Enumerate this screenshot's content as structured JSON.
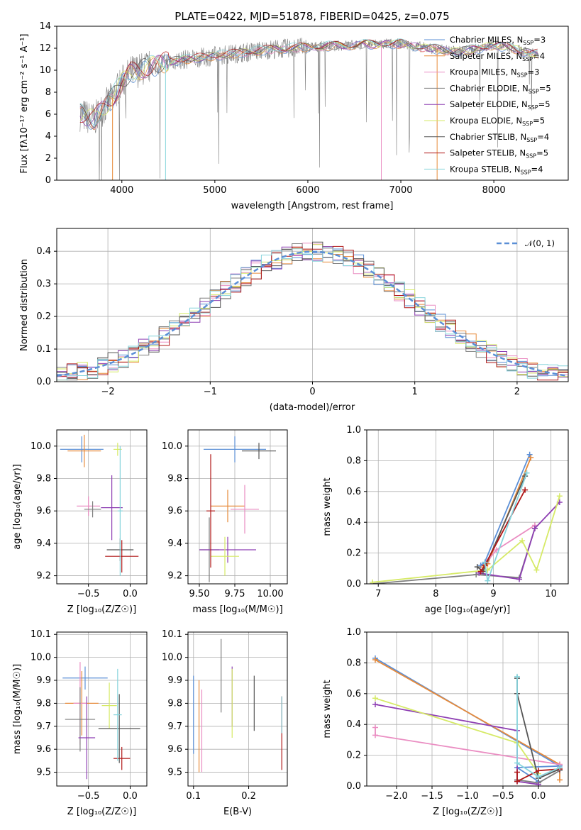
{
  "colors": [
    "#5b8fd6",
    "#e78a3a",
    "#ea8dc2",
    "#7f7f7f",
    "#8e3fb3",
    "#d6ea66",
    "#555555",
    "#b01818",
    "#86d4dc"
  ],
  "spectrum": {
    "title": "PLATE=0422, MJD=51878, FIBERID=0425, z=0.075",
    "xlabel": "wavelength [Angstrom, rest frame]",
    "ylabel": "Flux [fλ10⁻¹⁷ erg cm⁻² s⁻¹ A⁻¹]",
    "xticks": [
      "4000",
      "5000",
      "6000",
      "7000",
      "8000"
    ],
    "yticks": [
      "0",
      "2",
      "4",
      "6",
      "8",
      "10",
      "12",
      "14"
    ],
    "legend": [
      {
        "model": "Chabrier MILES",
        "n": "3"
      },
      {
        "model": "Salpeter MILES",
        "n": "4"
      },
      {
        "model": "Kroupa MILES",
        "n": "3"
      },
      {
        "model": "Chabrier ELODIE",
        "n": "5"
      },
      {
        "model": "Salpeter ELODIE",
        "n": "5"
      },
      {
        "model": "Kroupa ELODIE",
        "n": "5"
      },
      {
        "model": "Chabrier STELIB",
        "n": "4"
      },
      {
        "model": "Salpeter STELIB",
        "n": "5"
      },
      {
        "model": "Kroupa STELIB",
        "n": "4"
      }
    ]
  },
  "residuals": {
    "xlabel": "(data-model)/error",
    "ylabel": "Normed distribution",
    "xticks": [
      "−2",
      "−1",
      "0",
      "1",
      "2"
    ],
    "yticks": [
      "0.0",
      "0.1",
      "0.2",
      "0.3",
      "0.4"
    ],
    "legend_label": "𝒩(0, 1)"
  },
  "panels": {
    "z_age": {
      "xlabel": "Z [log₁₀(Z/Z☉)]",
      "ylabel": "age  [log₁₀(age/yr)]",
      "xticks": [
        "−0.5",
        "0.0"
      ],
      "yticks": [
        "9.2",
        "9.4",
        "9.6",
        "9.8",
        "10.0"
      ]
    },
    "mass_age": {
      "xlabel": "mass [log₁₀(M/M☉)]",
      "xticks": [
        "9.50",
        "9.75",
        "10.00"
      ],
      "yticks": [
        "9.2",
        "9.4",
        "9.6",
        "9.8",
        "10.0"
      ]
    },
    "age_weight": {
      "xlabel": "age  [log₁₀(age/yr)]",
      "ylabel": "mass weight",
      "xticks": [
        "7",
        "8",
        "9",
        "10"
      ],
      "yticks": [
        "0.0",
        "0.2",
        "0.4",
        "0.6",
        "0.8",
        "1.0"
      ]
    },
    "z_mass": {
      "xlabel": "Z [log₁₀(Z/Z☉)]",
      "ylabel": "mass [log₁₀(M/M☉)]",
      "xticks": [
        "−0.5",
        "0.0"
      ],
      "yticks": [
        "9.5",
        "9.6",
        "9.7",
        "9.8",
        "9.9",
        "10.0",
        "10.1"
      ]
    },
    "ebv_mass": {
      "xlabel": "E(B-V)",
      "xticks": [
        "0.1",
        "0.2"
      ],
      "yticks": [
        "9.5",
        "9.6",
        "9.7",
        "9.8",
        "9.9",
        "10.0",
        "10.1"
      ]
    },
    "z_weight": {
      "xlabel": "Z [log₁₀(Z/Z☉)]",
      "ylabel": "mass weight",
      "xticks": [
        "−2.0",
        "−1.5",
        "−1.0",
        "−0.5",
        "0.0"
      ],
      "yticks": [
        "0.0",
        "0.2",
        "0.4",
        "0.6",
        "0.8",
        "1.0"
      ]
    }
  },
  "chart_data": [
    {
      "type": "line",
      "title": "PLATE=0422, MJD=51878, FIBERID=0425, z=0.075",
      "xlabel": "wavelength [Angstrom, rest frame]",
      "ylabel": "Flux [fλ10⁻¹⁷ erg cm⁻² s⁻¹ A⁻¹]",
      "xlim": [
        3300,
        8800
      ],
      "ylim": [
        0,
        14
      ],
      "continuum": {
        "x": [
          3550,
          3700,
          3900,
          4000,
          4100,
          4300,
          4500,
          4700,
          5000,
          5300,
          5600,
          6000,
          6500,
          6800,
          7000,
          7300,
          7600,
          7800,
          8000,
          8200,
          8400
        ],
        "y": [
          6.0,
          5.5,
          7.5,
          8.9,
          9.8,
          10.3,
          10.8,
          11.0,
          11.3,
          11.6,
          11.9,
          12.1,
          12.3,
          12.4,
          12.4,
          12.0,
          11.7,
          11.9,
          12.3,
          12.0,
          11.5
        ]
      },
      "grid": false,
      "legend": "upper right"
    },
    {
      "type": "line",
      "xlabel": "(data-model)/error",
      "ylabel": "Normed distribution",
      "xlim": [
        -2.5,
        2.5
      ],
      "ylim": [
        0,
        0.47
      ],
      "grid": true,
      "reference": {
        "x": [
          -2.5,
          -2.0,
          -1.5,
          -1.0,
          -0.5,
          0.0,
          0.5,
          1.0,
          1.5,
          2.0,
          2.5
        ],
        "y": [
          0.018,
          0.054,
          0.13,
          0.242,
          0.352,
          0.399,
          0.352,
          0.242,
          0.13,
          0.054,
          0.018
        ]
      },
      "bin_width": 0.1
    },
    {
      "type": "scatter",
      "xlabel": "Z [log₁₀(Z/Z☉)]",
      "ylabel": "age  [log₁₀(age/yr)]",
      "xlim": [
        -0.88,
        0.2
      ],
      "ylim": [
        9.15,
        10.1
      ],
      "grid": true,
      "points": [
        {
          "x": -0.58,
          "y": 9.98,
          "xerr": 0.26,
          "yerr": 0.08
        },
        {
          "x": -0.55,
          "y": 9.97,
          "xerr": 0.2,
          "yerr": 0.1
        },
        {
          "x": -0.5,
          "y": 9.63,
          "xerr": 0.14,
          "yerr": 0.06
        },
        {
          "x": -0.45,
          "y": 9.61,
          "xerr": 0.1,
          "yerr": 0.05
        },
        {
          "x": -0.22,
          "y": 9.62,
          "xerr": 0.13,
          "yerr": 0.2
        },
        {
          "x": -0.15,
          "y": 9.98,
          "xerr": 0.05,
          "yerr": 0.04
        },
        {
          "x": -0.12,
          "y": 9.36,
          "xerr": 0.16,
          "yerr": 0.07
        },
        {
          "x": -0.1,
          "y": 9.32,
          "xerr": 0.2,
          "yerr": 0.1
        },
        {
          "x": -0.12,
          "y": 9.6,
          "xerr": 0.03,
          "yerr": 0.4
        }
      ]
    },
    {
      "type": "scatter",
      "xlabel": "mass [log₁₀(M/M☉)]",
      "xlim": [
        9.42,
        10.12
      ],
      "ylim": [
        9.15,
        10.1
      ],
      "grid": true,
      "points": [
        {
          "x": 9.75,
          "y": 9.98,
          "xerr": 0.22,
          "yerr": 0.08
        },
        {
          "x": 9.7,
          "y": 9.63,
          "xerr": 0.12,
          "yerr": 0.1
        },
        {
          "x": 9.82,
          "y": 9.61,
          "xerr": 0.1,
          "yerr": 0.15
        },
        {
          "x": 9.57,
          "y": 9.36,
          "xerr": 0.07,
          "yerr": 0.2
        },
        {
          "x": 9.7,
          "y": 9.36,
          "xerr": 0.2,
          "yerr": 0.08
        },
        {
          "x": 9.68,
          "y": 9.32,
          "xerr": 0.1,
          "yerr": 0.12
        },
        {
          "x": 9.92,
          "y": 9.97,
          "xerr": 0.12,
          "yerr": 0.05
        },
        {
          "x": 9.58,
          "y": 9.6,
          "xerr": 0.03,
          "yerr": 0.35
        }
      ]
    },
    {
      "type": "line",
      "xlabel": "age  [log₁₀(age/yr)]",
      "ylabel": "mass weight",
      "xlim": [
        6.8,
        10.3
      ],
      "ylim": [
        0,
        1
      ],
      "grid": true,
      "series": [
        {
          "x": [
            8.78,
            8.85,
            9.63
          ],
          "y": [
            0.12,
            0.14,
            0.84
          ]
        },
        {
          "x": [
            8.83,
            8.9,
            9.65
          ],
          "y": [
            0.11,
            0.13,
            0.82
          ]
        },
        {
          "x": [
            8.88,
            9.05,
            9.72
          ],
          "y": [
            0.14,
            0.22,
            0.38
          ]
        },
        {
          "x": [
            6.9,
            8.7,
            9.45,
            9.72
          ],
          "y": [
            0.0,
            0.06,
            0.04,
            0.36
          ]
        },
        {
          "x": [
            8.75,
            9.45,
            9.72,
            10.15
          ],
          "y": [
            0.07,
            0.03,
            0.36,
            0.53
          ]
        },
        {
          "x": [
            6.9,
            8.9,
            9.5,
            9.75,
            10.15
          ],
          "y": [
            0.01,
            0.09,
            0.28,
            0.09,
            0.57
          ]
        },
        {
          "x": [
            8.72,
            8.82,
            9.55
          ],
          "y": [
            0.11,
            0.08,
            0.7
          ]
        },
        {
          "x": [
            8.78,
            8.85,
            9.55
          ],
          "y": [
            0.08,
            0.12,
            0.61
          ]
        },
        {
          "x": [
            8.85,
            8.9,
            9.58
          ],
          "y": [
            0.14,
            0.02,
            0.72
          ]
        }
      ]
    },
    {
      "type": "scatter",
      "xlabel": "Z [log₁₀(Z/Z☉)]",
      "ylabel": "mass [log₁₀(M/M☉)]",
      "xlim": [
        -0.88,
        0.2
      ],
      "ylim": [
        9.44,
        10.11
      ],
      "grid": true,
      "points": [
        {
          "x": -0.54,
          "y": 9.91,
          "xerr": 0.27,
          "yerr": 0.05
        },
        {
          "x": -0.58,
          "y": 9.8,
          "xerr": 0.2,
          "yerr": 0.14
        },
        {
          "x": -0.6,
          "y": 9.8,
          "xerr": 0.08,
          "yerr": 0.18
        },
        {
          "x": -0.6,
          "y": 9.73,
          "xerr": 0.18,
          "yerr": 0.14
        },
        {
          "x": -0.52,
          "y": 9.65,
          "xerr": 0.1,
          "yerr": 0.18
        },
        {
          "x": -0.25,
          "y": 9.79,
          "xerr": 0.09,
          "yerr": 0.1
        },
        {
          "x": -0.13,
          "y": 9.69,
          "xerr": 0.25,
          "yerr": 0.15
        },
        {
          "x": -0.1,
          "y": 9.56,
          "xerr": 0.1,
          "yerr": 0.05
        },
        {
          "x": -0.15,
          "y": 9.75,
          "xerr": 0.05,
          "yerr": 0.2
        }
      ]
    },
    {
      "type": "scatter",
      "xlabel": "E(B-V)",
      "xlim": [
        0.09,
        0.27
      ],
      "ylim": [
        9.44,
        10.11
      ],
      "grid": true,
      "points": [
        {
          "x": 0.1,
          "y": 9.75,
          "yerr": 0.17
        },
        {
          "x": 0.11,
          "y": 9.7,
          "yerr": 0.2
        },
        {
          "x": 0.115,
          "y": 9.68,
          "yerr": 0.18
        },
        {
          "x": 0.15,
          "y": 9.92,
          "yerr": 0.16
        },
        {
          "x": 0.17,
          "y": 9.83,
          "yerr": 0.13
        },
        {
          "x": 0.17,
          "y": 9.8,
          "yerr": 0.15
        },
        {
          "x": 0.21,
          "y": 9.8,
          "yerr": 0.12
        },
        {
          "x": 0.26,
          "y": 9.67,
          "yerr": 0.16
        },
        {
          "x": 0.26,
          "y": 9.75,
          "yerr": 0.08
        }
      ]
    },
    {
      "type": "line",
      "xlabel": "Z [log₁₀(Z/Z☉)]",
      "ylabel": "mass weight",
      "xlim": [
        -2.42,
        0.42
      ],
      "ylim": [
        0,
        1
      ],
      "grid": true,
      "series": [
        {
          "x": [
            -2.3,
            0.3,
            -0.3,
            0.0
          ],
          "y": [
            0.83,
            0.13,
            0.12,
            0.03
          ]
        },
        {
          "x": [
            -2.3,
            0.3,
            0.3
          ],
          "y": [
            0.82,
            0.14,
            0.04
          ]
        },
        {
          "x": [
            -2.3,
            -2.3,
            0.3
          ],
          "y": [
            0.38,
            0.33,
            0.14
          ]
        },
        {
          "x": [
            -0.3,
            0.0,
            0.3
          ],
          "y": [
            0.04,
            0.02,
            0.1
          ]
        },
        {
          "x": [
            -2.3,
            -0.3,
            -0.3,
            0.0
          ],
          "y": [
            0.53,
            0.36,
            0.03,
            0.01
          ]
        },
        {
          "x": [
            -2.3,
            -0.3,
            0.0
          ],
          "y": [
            0.57,
            0.28,
            0.08
          ]
        },
        {
          "x": [
            -0.3,
            -0.3,
            0.0,
            0.3
          ],
          "y": [
            0.7,
            0.6,
            0.05,
            0.11
          ]
        },
        {
          "x": [
            -0.3,
            -0.3,
            0.0,
            0.3
          ],
          "y": [
            0.09,
            0.03,
            0.1,
            0.11
          ]
        },
        {
          "x": [
            -0.3,
            -0.3,
            0.0,
            0.3
          ],
          "y": [
            0.71,
            0.15,
            0.06,
            0.12
          ]
        }
      ]
    }
  ]
}
